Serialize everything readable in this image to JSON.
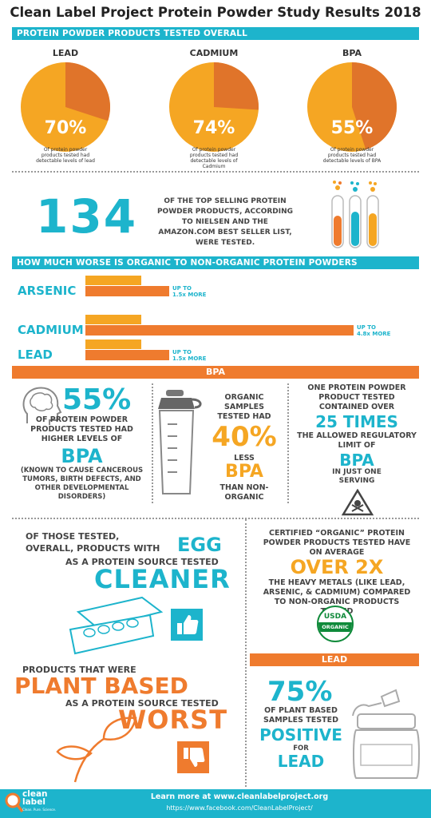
{
  "title": "Clean Label Project Protein Powder Study Results 2018",
  "section_tested": "PROTEIN POWDER PRODUCTS TESTED OVERALL",
  "pies": [
    {
      "label": "LEAD",
      "percent": 70,
      "pct_text": "70%",
      "caption": "Of protein powder products tested had detectable levels of lead"
    },
    {
      "label": "CADMIUM",
      "percent": 74,
      "pct_text": "74%",
      "caption": "Of protein powder products tested had detectable levels of Cadmium"
    },
    {
      "label": "BPA",
      "percent": 55,
      "pct_text": "55%",
      "caption": "Of protein powder products tested had detectable levels of BPA"
    }
  ],
  "count": {
    "number": "134",
    "text": "OF THE TOP SELLING PROTEIN POWDER PRODUCTS, ACCORDING TO NIELSEN AND THE AMAZON.COM BEST SELLER LIST, WERE TESTED."
  },
  "section_organic": "HOW MUCH WORSE IS ORGANIC TO NON-ORGANIC PROTEIN POWDERS",
  "organic_bars": [
    {
      "label": "ARSENIC",
      "multiplier": 1.5,
      "note_top": "UP TO",
      "note_bottom": "1.5x MORE"
    },
    {
      "label": "CADMIUM",
      "multiplier": 4.8,
      "note_top": "UP TO",
      "note_bottom": "4.8x MORE"
    },
    {
      "label": "LEAD",
      "multiplier": 1.5,
      "note_top": "UP TO",
      "note_bottom": "1.5x MORE"
    }
  ],
  "section_bpa": "BPA",
  "bpa_col1": {
    "pct": "55%",
    "line1": "OF PROTEIN POWDER PRODUCTS TESTED HAD HIGHER LEVELS OF",
    "big": "BPA",
    "detail": "(KNOWN TO CAUSE CANCEROUS TUMORS, BIRTH DEFECTS, AND OTHER DEVELOPMENTAL DISORDERS)"
  },
  "bpa_col2": {
    "top": "ORGANIC SAMPLES TESTED HAD",
    "pct": "40%",
    "less": "LESS",
    "big": "BPA",
    "bottom": "THAN NON-ORGANIC"
  },
  "bpa_col3": {
    "top": "ONE PROTEIN POWDER PRODUCT TESTED CONTAINED OVER",
    "big": "25 TIMES",
    "mid": "THE ALLOWED REGULATORY LIMIT OF",
    "bpa": "BPA",
    "bottom": "IN JUST ONE SERVING"
  },
  "egg": {
    "line1": "OF THOSE TESTED,",
    "line2": "OVERALL, PRODUCTS WITH",
    "egg": "EGG",
    "line3": "AS A PROTEIN SOURCE TESTED",
    "big": "CLEANER"
  },
  "organic_claim": {
    "top": "CERTIFIED “ORGANIC” PROTEIN POWDER PRODUCTS TESTED HAVE ON AVERAGE",
    "big": "OVER 2X",
    "bottom": "THE HEAVY METALS (LIKE LEAD, ARSENIC, & CADMIUM) COMPARED TO NON-ORGANIC PRODUCTS TESTED",
    "usda_top": "USDA",
    "usda_bottom": "ORGANIC"
  },
  "plant": {
    "line1": "PRODUCTS THAT WERE",
    "big1": "PLANT BASED",
    "line2": "AS A PROTEIN SOURCE TESTED",
    "big2": "WORST"
  },
  "section_lead": "LEAD",
  "lead": {
    "pct": "75%",
    "line": "OF PLANT BASED SAMPLES TESTED",
    "big": "POSITIVE",
    "for": "FOR",
    "lead": "LEAD"
  },
  "footer": {
    "logo1": "clean",
    "logo2": "label",
    "logo3": "Clean. Pure. Science.",
    "learn": "Learn more at www.cleanlabelproject.org",
    "fb": "https://www.facebook.com/CleanLabelProject/"
  },
  "colors": {
    "teal": "#1db4cc",
    "orange": "#f5a623",
    "dark_orange": "#ef7b2e"
  }
}
